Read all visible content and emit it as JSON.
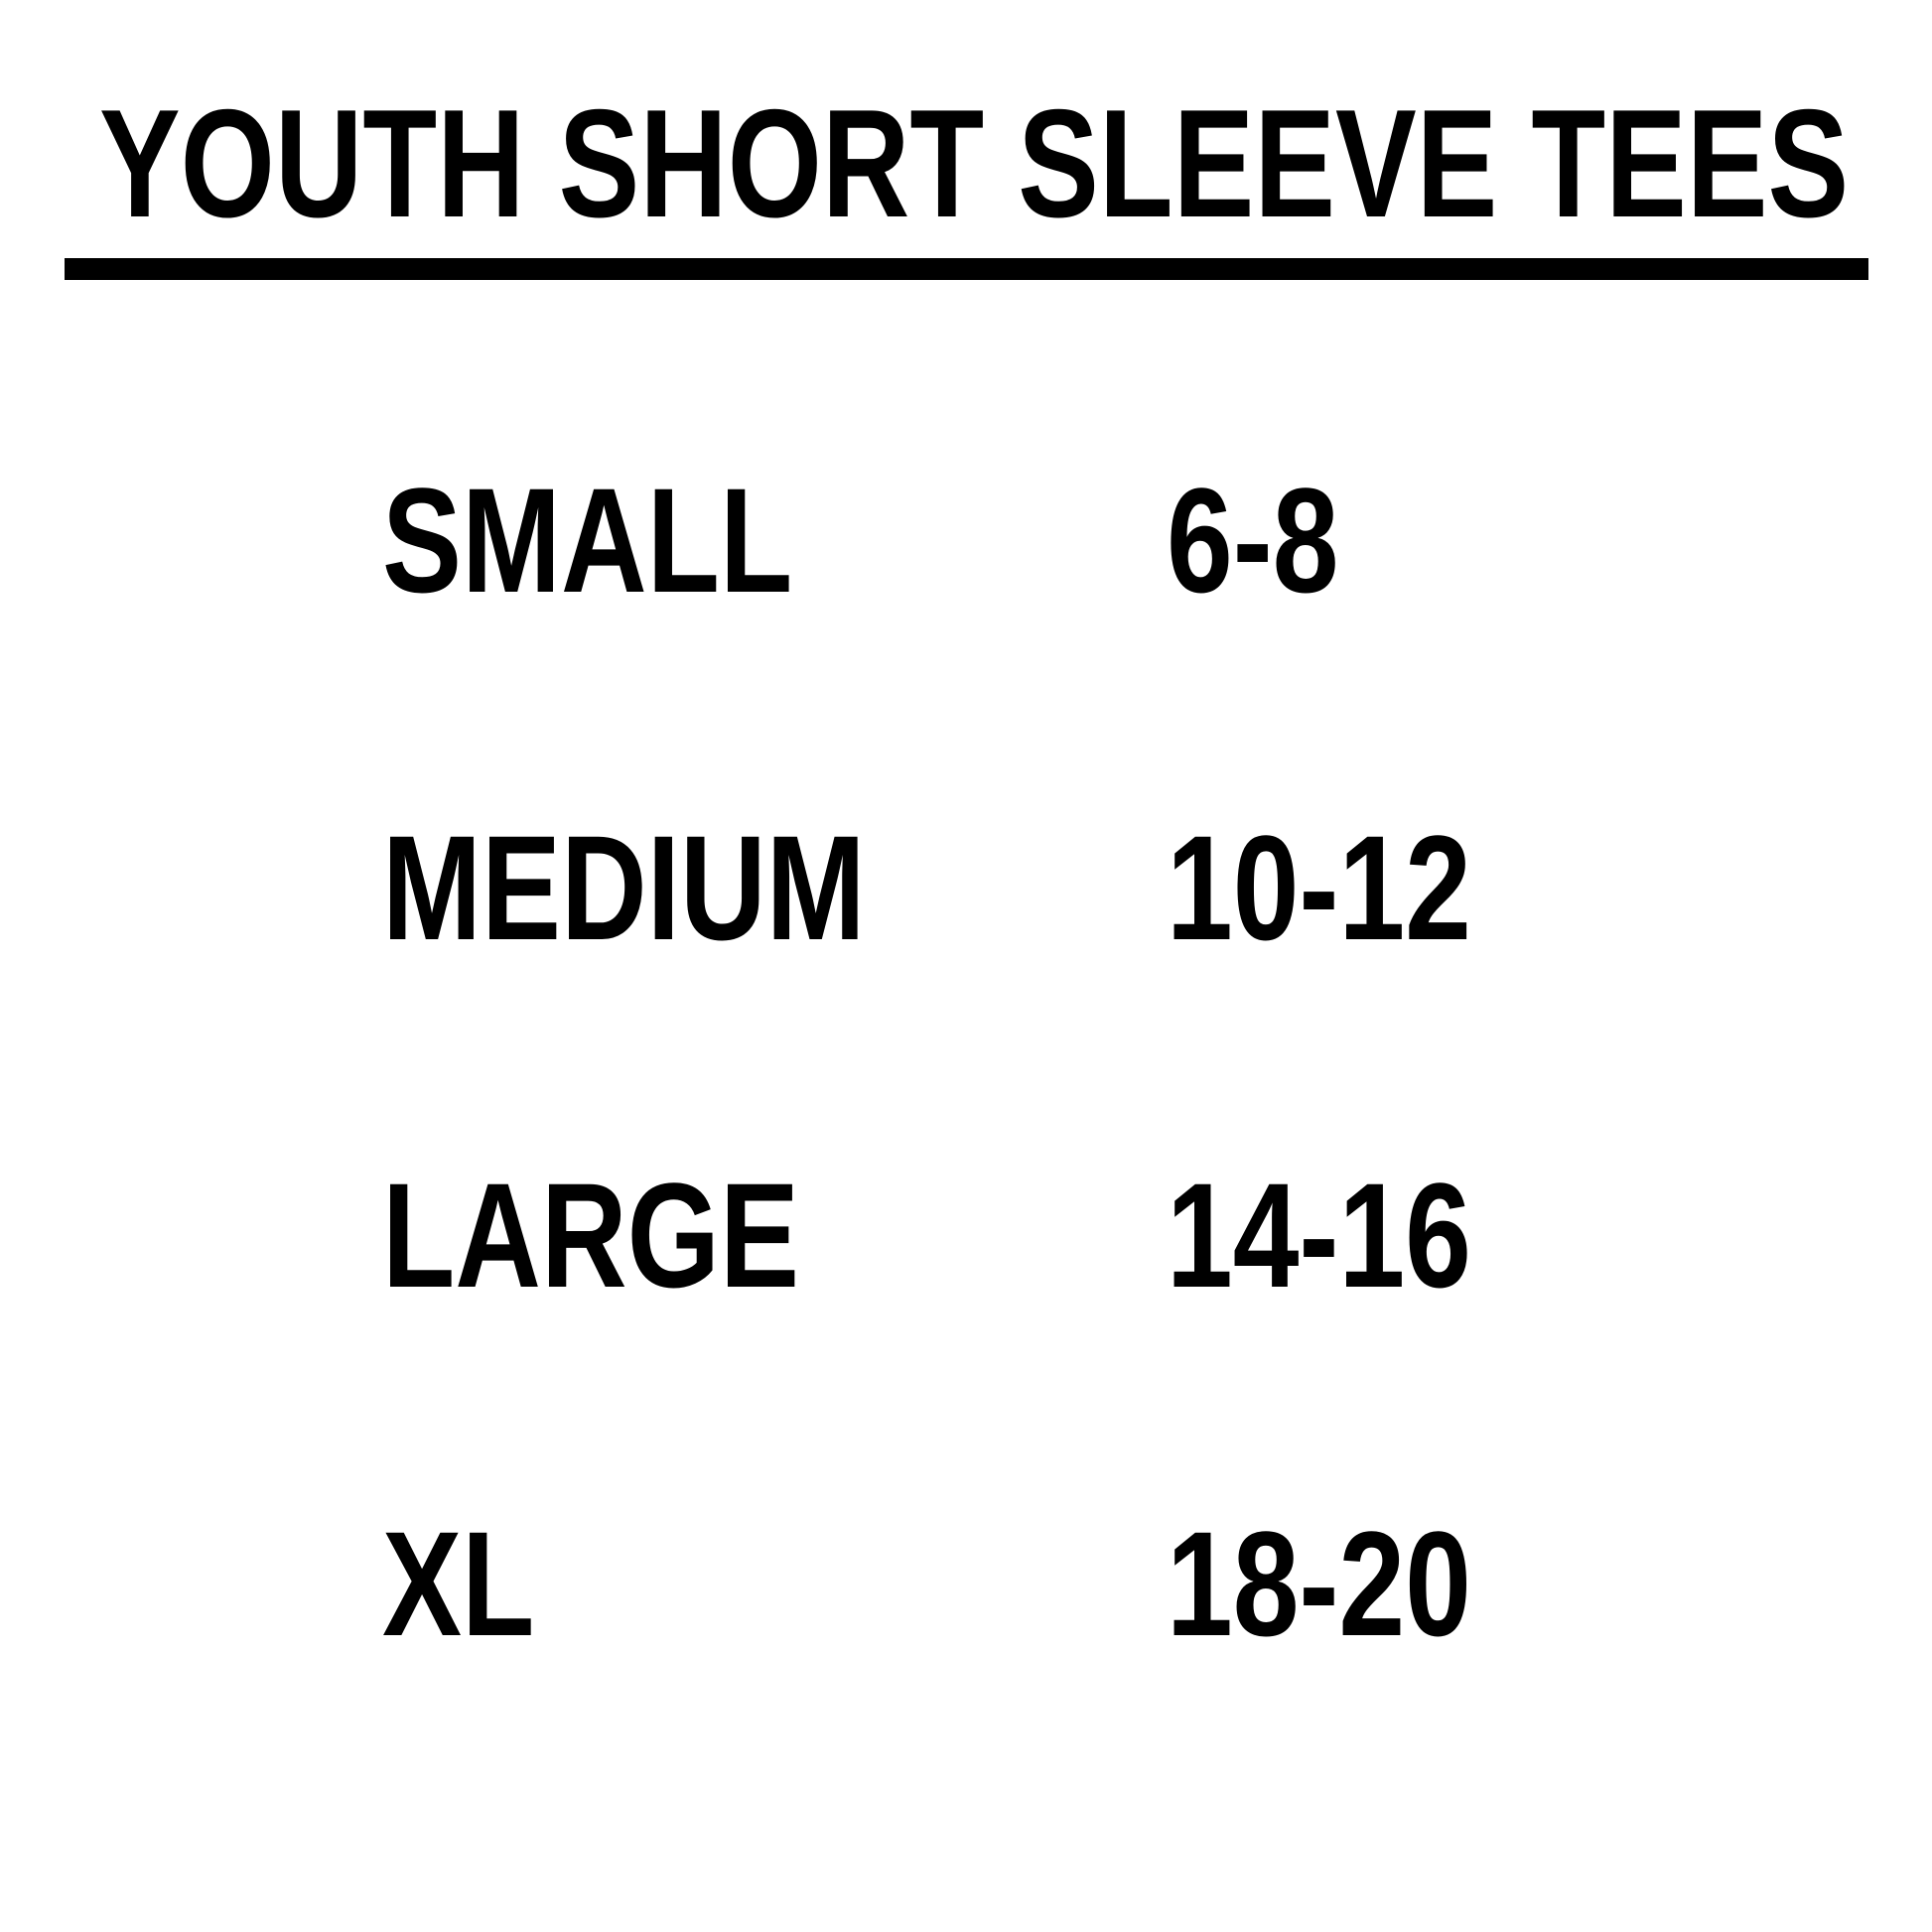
{
  "page": {
    "title": "YOUTH SHORT SLEEVE TEES"
  },
  "size_chart": {
    "rows": [
      {
        "size": "SMALL",
        "range": "6-8"
      },
      {
        "size": "MEDIUM",
        "range": "10-12"
      },
      {
        "size": "LARGE",
        "range": "14-16"
      },
      {
        "size": "XL",
        "range": "18-20"
      }
    ]
  },
  "colors": {
    "text": "#000000",
    "background": "#ffffff",
    "divider": "#000000"
  }
}
